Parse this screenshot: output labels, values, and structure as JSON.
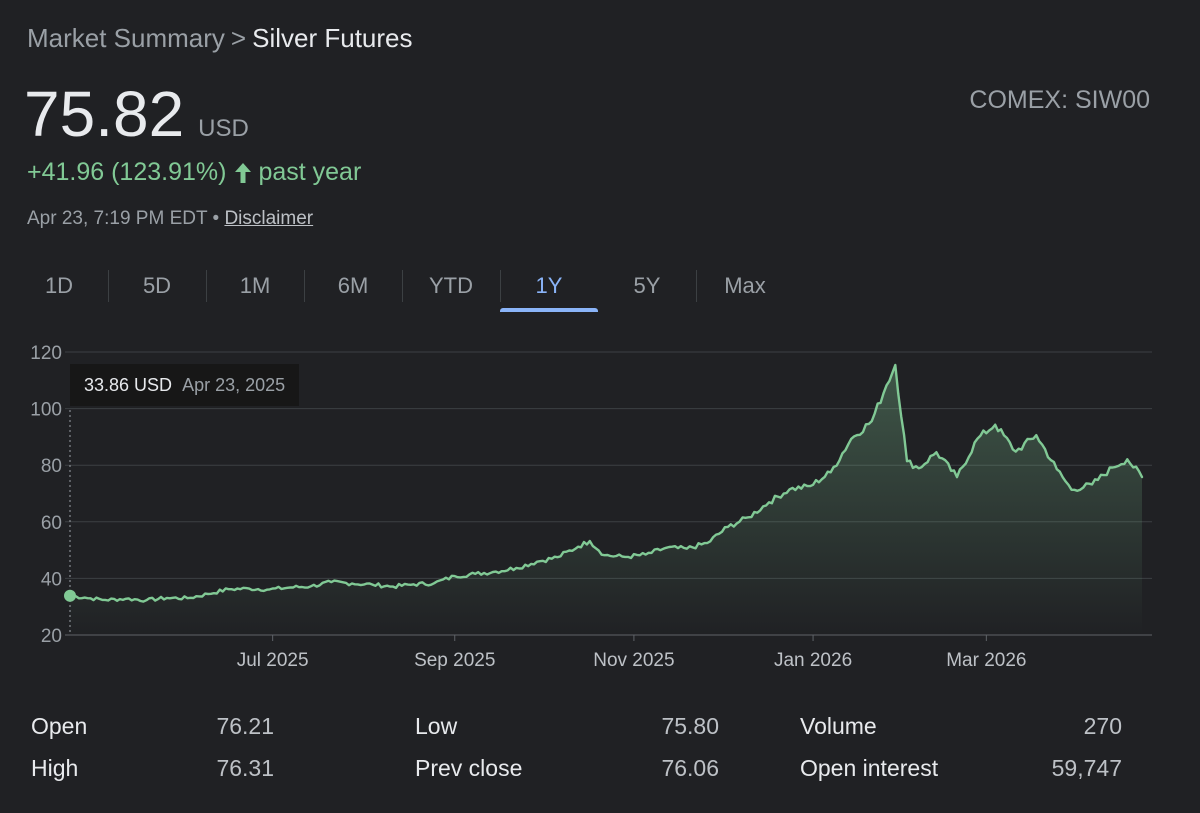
{
  "breadcrumb": {
    "root": "Market Summary",
    "separator": ">",
    "current": "Silver Futures"
  },
  "price": {
    "value": "75.82",
    "currency": "USD"
  },
  "exchange": "COMEX: SIW00",
  "change": {
    "text": "+41.96 (123.91%)",
    "period": "past year",
    "direction": "up",
    "color": "#81c995"
  },
  "timestamp": {
    "text": "Apr 23, 7:19 PM EDT",
    "bullet": "•",
    "disclaimer": "Disclaimer"
  },
  "tabs": [
    {
      "label": "1D",
      "active": false
    },
    {
      "label": "5D",
      "active": false
    },
    {
      "label": "1M",
      "active": false
    },
    {
      "label": "6M",
      "active": false
    },
    {
      "label": "YTD",
      "active": false
    },
    {
      "label": "1Y",
      "active": true
    },
    {
      "label": "5Y",
      "active": false
    },
    {
      "label": "Max",
      "active": false
    }
  ],
  "tooltip": {
    "value": "33.86 USD",
    "date": "Apr 23, 2025"
  },
  "chart_data": {
    "type": "area",
    "title": "",
    "xlabel": "",
    "ylabel": "",
    "ylim": [
      20,
      120
    ],
    "yticks": [
      20,
      40,
      60,
      80,
      100,
      120
    ],
    "xlim": [
      "2025-04-23",
      "2026-04-23"
    ],
    "xticks": [
      {
        "date": "2025-07-01",
        "label": "Jul 2025"
      },
      {
        "date": "2025-09-01",
        "label": "Sep 2025"
      },
      {
        "date": "2025-11-01",
        "label": "Nov 2025"
      },
      {
        "date": "2026-01-01",
        "label": "Jan 2026"
      },
      {
        "date": "2026-03-01",
        "label": "Mar 2026"
      }
    ],
    "grid": true,
    "line_color": "#81c995",
    "highlight": {
      "date": "2025-04-23",
      "value": 33.86
    },
    "series": [
      {
        "points": [
          [
            "2025-04-23",
            33.86
          ],
          [
            "2025-04-28",
            33.2
          ],
          [
            "2025-05-05",
            32.4
          ],
          [
            "2025-05-12",
            32.8
          ],
          [
            "2025-05-19",
            32.3
          ],
          [
            "2025-05-26",
            33.1
          ],
          [
            "2025-06-02",
            33.0
          ],
          [
            "2025-06-09",
            34.5
          ],
          [
            "2025-06-16",
            36.2
          ],
          [
            "2025-06-23",
            36.4
          ],
          [
            "2025-06-30",
            36.1
          ],
          [
            "2025-07-07",
            36.8
          ],
          [
            "2025-07-14",
            37.2
          ],
          [
            "2025-07-21",
            38.7
          ],
          [
            "2025-07-28",
            38.2
          ],
          [
            "2025-08-04",
            37.8
          ],
          [
            "2025-08-11",
            37.1
          ],
          [
            "2025-08-18",
            37.9
          ],
          [
            "2025-08-25",
            38.3
          ],
          [
            "2025-09-01",
            40.8
          ],
          [
            "2025-09-08",
            41.6
          ],
          [
            "2025-09-15",
            42.4
          ],
          [
            "2025-09-22",
            43.7
          ],
          [
            "2025-09-29",
            45.9
          ],
          [
            "2025-10-06",
            47.5
          ],
          [
            "2025-10-13",
            51.2
          ],
          [
            "2025-10-17",
            53.2
          ],
          [
            "2025-10-22",
            48.2
          ],
          [
            "2025-10-29",
            47.6
          ],
          [
            "2025-11-05",
            48.4
          ],
          [
            "2025-11-12",
            50.8
          ],
          [
            "2025-11-19",
            50.5
          ],
          [
            "2025-11-26",
            52.5
          ],
          [
            "2025-12-03",
            58.2
          ],
          [
            "2025-12-10",
            61.6
          ],
          [
            "2025-12-17",
            66.9
          ],
          [
            "2025-12-24",
            71.5
          ],
          [
            "2025-12-31",
            72.6
          ],
          [
            "2026-01-07",
            77.5
          ],
          [
            "2026-01-14",
            89.3
          ],
          [
            "2026-01-21",
            95.6
          ],
          [
            "2026-01-26",
            108.2
          ],
          [
            "2026-01-29",
            115.4
          ],
          [
            "2026-02-02",
            81.4
          ],
          [
            "2026-02-06",
            78.9
          ],
          [
            "2026-02-12",
            84.6
          ],
          [
            "2026-02-19",
            75.8
          ],
          [
            "2026-02-26",
            89.4
          ],
          [
            "2026-03-04",
            94.3
          ],
          [
            "2026-03-11",
            84.8
          ],
          [
            "2026-03-18",
            90.6
          ],
          [
            "2026-03-25",
            78.6
          ],
          [
            "2026-03-30",
            71.3
          ],
          [
            "2026-04-06",
            73.2
          ],
          [
            "2026-04-13",
            79.2
          ],
          [
            "2026-04-18",
            82.1
          ],
          [
            "2026-04-23",
            75.82
          ]
        ]
      }
    ]
  },
  "stats": [
    [
      {
        "label": "Open",
        "value": "76.21"
      },
      {
        "label": "High",
        "value": "76.31"
      }
    ],
    [
      {
        "label": "Low",
        "value": "75.80"
      },
      {
        "label": "Prev close",
        "value": "76.06"
      }
    ],
    [
      {
        "label": "Volume",
        "value": "270"
      },
      {
        "label": "Open interest",
        "value": "59,747"
      }
    ]
  ]
}
